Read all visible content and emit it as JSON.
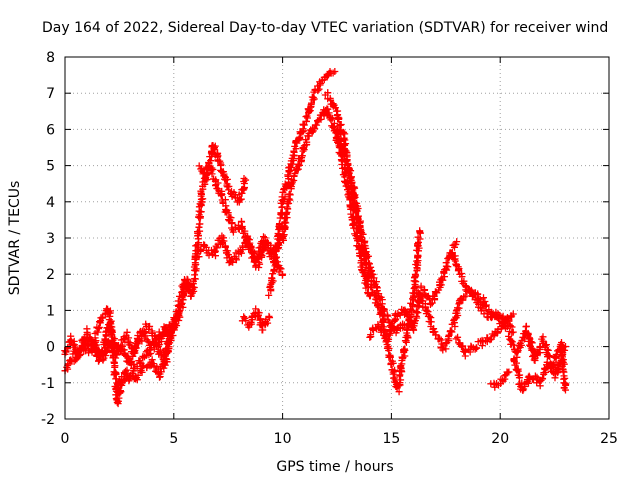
{
  "chart_data": {
    "type": "scatter",
    "title": "Day 164 of 2022, Sidereal Day-to-day VTEC variation (SDTVAR) for receiver wind",
    "xlabel": "GPS time / hours",
    "ylabel": "SDTVAR / TECUs",
    "xlim": [
      0,
      25
    ],
    "ylim": [
      -2,
      8
    ],
    "xticks": [
      0,
      5,
      10,
      15,
      20,
      25
    ],
    "yticks": [
      -2,
      -1,
      0,
      1,
      2,
      3,
      4,
      5,
      6,
      7,
      8
    ],
    "grid": true,
    "marker": "+",
    "series": [
      {
        "name": "SDTVAR",
        "color": "#ff0000",
        "traces": [
          {
            "x": [
              0.0,
              0.3,
              0.6,
              1.0,
              1.4,
              1.8,
              2.0,
              2.3,
              2.6,
              3.0,
              3.4,
              3.8,
              4.2,
              4.6,
              4.9
            ],
            "y": [
              -0.2,
              0.2,
              -0.3,
              0.4,
              0.0,
              -0.4,
              0.1,
              -0.2,
              0.0,
              -0.5,
              0.3,
              0.6,
              0.2,
              0.5,
              0.3
            ]
          },
          {
            "x": [
              0.0,
              0.4,
              0.8,
              1.2,
              1.6,
              2.0,
              2.4,
              2.8,
              3.2,
              3.6,
              4.0,
              4.4,
              4.8
            ],
            "y": [
              -0.7,
              -0.3,
              -0.1,
              0.2,
              -0.4,
              0.6,
              -0.1,
              0.3,
              -0.2,
              0.4,
              0.0,
              0.2,
              0.6
            ]
          },
          {
            "x": [
              0.8,
              1.2,
              1.6,
              2.0,
              2.2,
              2.4,
              2.6,
              3.0,
              3.4,
              3.8,
              4.2,
              4.6,
              5.0
            ],
            "y": [
              0.1,
              -0.2,
              0.7,
              1.05,
              0.2,
              -1.5,
              -1.1,
              -0.8,
              -0.4,
              -0.2,
              0.1,
              -0.5,
              0.8
            ]
          },
          {
            "x": [
              2.4,
              2.8,
              3.2,
              3.6,
              4.0,
              4.4,
              4.8,
              5.2,
              5.5,
              5.8
            ],
            "y": [
              -1.2,
              -0.7,
              -0.9,
              -0.6,
              -0.4,
              -0.8,
              0.2,
              1.0,
              1.8,
              1.4
            ]
          },
          {
            "x": [
              5.0,
              5.3,
              5.6,
              5.9,
              6.1,
              6.3,
              6.6,
              6.9,
              7.2,
              7.5,
              7.8,
              8.1,
              8.4,
              8.8,
              9.2,
              9.6,
              10.0
            ],
            "y": [
              0.4,
              1.0,
              1.8,
              1.5,
              3.0,
              4.3,
              5.0,
              4.6,
              4.2,
              3.6,
              3.2,
              3.4,
              2.8,
              2.4,
              3.0,
              2.6,
              3.0
            ]
          },
          {
            "x": [
              6.0,
              6.4,
              6.8,
              7.2,
              7.6,
              8.0,
              8.4,
              8.8,
              9.2,
              9.6,
              10.0
            ],
            "y": [
              2.4,
              2.8,
              2.5,
              3.0,
              2.3,
              2.6,
              3.0,
              2.2,
              2.8,
              2.4,
              2.0
            ]
          },
          {
            "x": [
              6.2,
              6.5,
              6.8,
              7.1,
              7.4,
              7.7,
              8.0,
              8.3
            ],
            "y": [
              5.0,
              4.7,
              5.6,
              5.1,
              4.6,
              4.2,
              4.0,
              4.6
            ]
          },
          {
            "x": [
              8.2,
              8.5,
              8.8,
              9.1,
              9.4
            ],
            "y": [
              0.8,
              0.6,
              1.0,
              0.5,
              0.8
            ]
          },
          {
            "x": [
              9.4,
              9.7,
              10.0,
              10.3,
              10.6,
              10.9,
              11.2,
              11.5,
              11.8,
              12.1,
              12.4
            ],
            "y": [
              1.5,
              2.5,
              4.0,
              4.8,
              5.5,
              6.0,
              6.5,
              7.0,
              7.3,
              7.5,
              7.6
            ]
          },
          {
            "x": [
              10.0,
              10.4,
              10.8,
              11.2,
              11.6,
              12.0,
              12.4,
              12.8,
              13.2,
              13.6,
              14.0
            ],
            "y": [
              3.0,
              4.5,
              5.2,
              5.8,
              6.2,
              6.6,
              6.0,
              5.0,
              3.6,
              2.4,
              1.4
            ]
          },
          {
            "x": [
              12.0,
              12.4,
              12.8,
              13.2,
              13.6,
              14.0,
              14.4,
              14.8,
              15.2,
              15.6
            ],
            "y": [
              7.0,
              6.6,
              5.8,
              4.5,
              3.2,
              2.2,
              1.5,
              0.8,
              0.4,
              0.6
            ]
          },
          {
            "x": [
              12.5,
              12.9,
              13.3,
              13.7,
              14.1,
              14.5,
              14.9,
              15.3,
              15.7,
              16.1,
              16.3
            ],
            "y": [
              6.0,
              5.2,
              4.0,
              2.6,
              1.6,
              1.0,
              -0.2,
              -1.2,
              0.2,
              1.8,
              3.2
            ]
          },
          {
            "x": [
              14.0,
              14.4,
              14.8,
              15.2,
              15.6,
              16.0,
              16.4,
              16.8,
              17.2,
              17.6,
              18.0
            ],
            "y": [
              0.3,
              0.6,
              0.2,
              0.8,
              1.0,
              0.5,
              1.6,
              1.2,
              1.6,
              2.4,
              2.9
            ]
          },
          {
            "x": [
              16.2,
              16.6,
              17.0,
              17.4,
              17.8,
              18.2,
              18.6,
              19.0,
              19.4,
              19.8,
              20.2,
              20.6
            ],
            "y": [
              1.5,
              1.0,
              0.4,
              -0.1,
              0.5,
              1.3,
              1.6,
              1.2,
              0.9,
              0.8,
              0.6,
              0.9
            ]
          },
          {
            "x": [
              17.8,
              18.2,
              18.6,
              19.0,
              19.4,
              19.8,
              20.2,
              20.6
            ],
            "y": [
              2.6,
              1.9,
              1.5,
              1.4,
              1.1,
              0.9,
              0.7,
              0.4
            ]
          },
          {
            "x": [
              18.0,
              18.4,
              18.8,
              19.2,
              19.6,
              20.0,
              20.4
            ],
            "y": [
              0.2,
              -0.2,
              0.0,
              0.1,
              0.3,
              0.5,
              0.7
            ]
          },
          {
            "x": [
              19.6,
              20.0,
              20.4
            ],
            "y": [
              -1.1,
              -1.0,
              -0.7
            ]
          },
          {
            "x": [
              20.4,
              20.8,
              21.2,
              21.6,
              22.0,
              22.4,
              22.8,
              23.0
            ],
            "y": [
              0.2,
              -0.2,
              0.5,
              -0.4,
              0.2,
              -0.6,
              0.1,
              -1.2
            ]
          },
          {
            "x": [
              20.6,
              21.0,
              21.4,
              21.8,
              22.2,
              22.6,
              23.0
            ],
            "y": [
              -0.3,
              -1.2,
              -0.8,
              -1.0,
              -0.5,
              -0.8,
              0.0
            ]
          }
        ]
      }
    ]
  }
}
